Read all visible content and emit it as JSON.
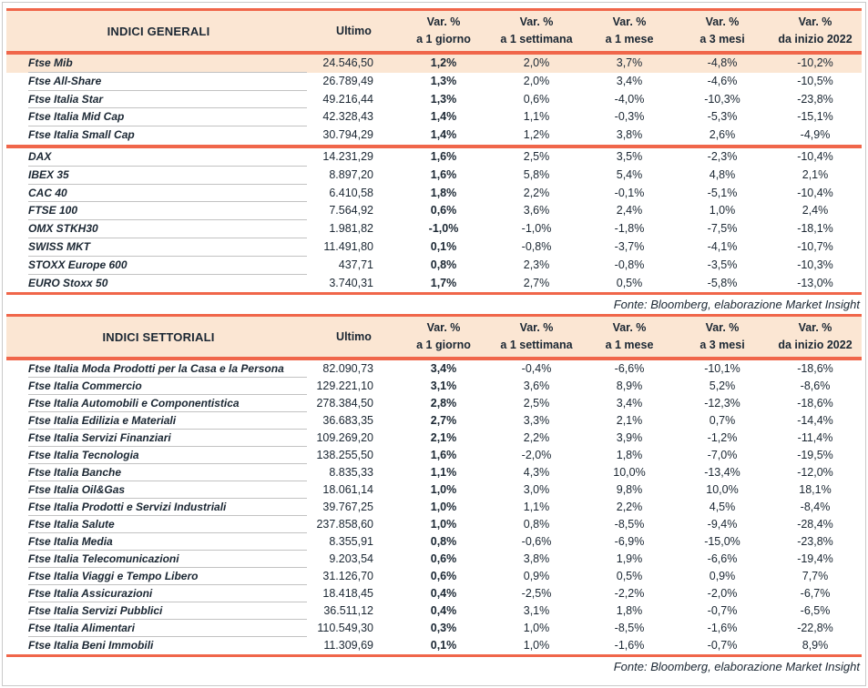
{
  "colors": {
    "accent_red": "#f0664a",
    "header_peach": "#fbe6d3",
    "text_ink": "#1b2733",
    "row_separator_gray": "#c2c2c2",
    "outer_frame_gray": "#cacaca"
  },
  "tables": [
    {
      "title": "INDICI GENERALI",
      "ultimo_label": "Ultimo",
      "var_headers": [
        {
          "line1": "Var. %",
          "line2": "a 1 giorno"
        },
        {
          "line1": "Var. %",
          "line2": "a 1 settimana"
        },
        {
          "line1": "Var. %",
          "line2": "a 1 mese"
        },
        {
          "line1": "Var. %",
          "line2": "a 3 mesi"
        },
        {
          "line1": "Var. %",
          "line2": "da inizio 2022"
        }
      ],
      "row_groups": [
        {
          "rows": [
            {
              "name": "Ftse Mib",
              "ultimo": "24.546,50",
              "d1": "1,2%",
              "w1": "2,0%",
              "m1": "3,7%",
              "m3": "-4,8%",
              "ytd": "-10,2%",
              "highlight": true
            },
            {
              "name": "Ftse All-Share",
              "ultimo": "26.789,49",
              "d1": "1,3%",
              "w1": "2,0%",
              "m1": "3,4%",
              "m3": "-4,6%",
              "ytd": "-10,5%"
            },
            {
              "name": "Ftse Italia Star",
              "ultimo": "49.216,44",
              "d1": "1,3%",
              "w1": "0,6%",
              "m1": "-4,0%",
              "m3": "-10,3%",
              "ytd": "-23,8%"
            },
            {
              "name": "Ftse Italia Mid Cap",
              "ultimo": "42.328,43",
              "d1": "1,4%",
              "w1": "1,1%",
              "m1": "-0,3%",
              "m3": "-5,3%",
              "ytd": "-15,1%"
            },
            {
              "name": "Ftse Italia Small Cap",
              "ultimo": "30.794,29",
              "d1": "1,4%",
              "w1": "1,2%",
              "m1": "3,8%",
              "m3": "2,6%",
              "ytd": "-4,9%"
            }
          ]
        },
        {
          "rows": [
            {
              "name": "DAX",
              "ultimo": "14.231,29",
              "d1": "1,6%",
              "w1": "2,5%",
              "m1": "3,5%",
              "m3": "-2,3%",
              "ytd": "-10,4%"
            },
            {
              "name": "IBEX 35",
              "ultimo": "8.897,20",
              "d1": "1,6%",
              "w1": "5,8%",
              "m1": "5,4%",
              "m3": "4,8%",
              "ytd": "2,1%"
            },
            {
              "name": "CAC 40",
              "ultimo": "6.410,58",
              "d1": "1,8%",
              "w1": "2,2%",
              "m1": "-0,1%",
              "m3": "-5,1%",
              "ytd": "-10,4%"
            },
            {
              "name": "FTSE 100",
              "ultimo": "7.564,92",
              "d1": "0,6%",
              "w1": "3,6%",
              "m1": "2,4%",
              "m3": "1,0%",
              "ytd": "2,4%"
            },
            {
              "name": "OMX STKH30",
              "ultimo": "1.981,82",
              "d1": "-1,0%",
              "w1": "-1,0%",
              "m1": "-1,8%",
              "m3": "-7,5%",
              "ytd": "-18,1%"
            },
            {
              "name": "SWISS MKT",
              "ultimo": "11.491,80",
              "d1": "0,1%",
              "w1": "-0,8%",
              "m1": "-3,7%",
              "m3": "-4,1%",
              "ytd": "-10,7%"
            },
            {
              "name": "STOXX Europe 600",
              "ultimo": "437,71",
              "d1": "0,8%",
              "w1": "2,3%",
              "m1": "-0,8%",
              "m3": "-3,5%",
              "ytd": "-10,3%"
            },
            {
              "name": "EURO Stoxx 50",
              "ultimo": "3.740,31",
              "d1": "1,7%",
              "w1": "2,7%",
              "m1": "0,5%",
              "m3": "-5,8%",
              "ytd": "-13,0%"
            }
          ]
        }
      ],
      "source_note": "Fonte: Bloomberg, elaborazione Market Insight"
    },
    {
      "title": "INDICI SETTORIALI",
      "ultimo_label": "Ultimo",
      "var_headers": [
        {
          "line1": "Var. %",
          "line2": "a 1 giorno"
        },
        {
          "line1": "Var. %",
          "line2": "a 1 settimana"
        },
        {
          "line1": "Var. %",
          "line2": "a 1 mese"
        },
        {
          "line1": "Var. %",
          "line2": "a 3 mesi"
        },
        {
          "line1": "Var. %",
          "line2": "da inizio 2022"
        }
      ],
      "row_groups": [
        {
          "rows": [
            {
              "name": "Ftse Italia Moda Prodotti per la Casa e la Persona",
              "ultimo": "82.090,73",
              "d1": "3,4%",
              "w1": "-0,4%",
              "m1": "-6,6%",
              "m3": "-10,1%",
              "ytd": "-18,6%"
            },
            {
              "name": "Ftse Italia Commercio",
              "ultimo": "129.221,10",
              "d1": "3,1%",
              "w1": "3,6%",
              "m1": "8,9%",
              "m3": "5,2%",
              "ytd": "-8,6%"
            },
            {
              "name": "Ftse Italia Automobili e Componentistica",
              "ultimo": "278.384,50",
              "d1": "2,8%",
              "w1": "2,5%",
              "m1": "3,4%",
              "m3": "-12,3%",
              "ytd": "-18,6%"
            },
            {
              "name": "Ftse Italia Edilizia e Materiali",
              "ultimo": "36.683,35",
              "d1": "2,7%",
              "w1": "3,3%",
              "m1": "2,1%",
              "m3": "0,7%",
              "ytd": "-14,4%"
            },
            {
              "name": "Ftse Italia Servizi Finanziari",
              "ultimo": "109.269,20",
              "d1": "2,1%",
              "w1": "2,2%",
              "m1": "3,9%",
              "m3": "-1,2%",
              "ytd": "-11,4%"
            },
            {
              "name": "Ftse Italia Tecnologia",
              "ultimo": "138.255,50",
              "d1": "1,6%",
              "w1": "-2,0%",
              "m1": "1,8%",
              "m3": "-7,0%",
              "ytd": "-19,5%"
            },
            {
              "name": "Ftse Italia Banche",
              "ultimo": "8.835,33",
              "d1": "1,1%",
              "w1": "4,3%",
              "m1": "10,0%",
              "m3": "-13,4%",
              "ytd": "-12,0%"
            },
            {
              "name": "Ftse Italia Oil&Gas",
              "ultimo": "18.061,14",
              "d1": "1,0%",
              "w1": "3,0%",
              "m1": "9,8%",
              "m3": "10,0%",
              "ytd": "18,1%"
            },
            {
              "name": "Ftse Italia Prodotti e Servizi Industriali",
              "ultimo": "39.767,25",
              "d1": "1,0%",
              "w1": "1,1%",
              "m1": "2,2%",
              "m3": "4,5%",
              "ytd": "-8,4%"
            },
            {
              "name": "Ftse Italia Salute",
              "ultimo": "237.858,60",
              "d1": "1,0%",
              "w1": "0,8%",
              "m1": "-8,5%",
              "m3": "-9,4%",
              "ytd": "-28,4%"
            },
            {
              "name": "Ftse Italia Media",
              "ultimo": "8.355,91",
              "d1": "0,8%",
              "w1": "-0,6%",
              "m1": "-6,9%",
              "m3": "-15,0%",
              "ytd": "-23,8%"
            },
            {
              "name": "Ftse Italia Telecomunicazioni",
              "ultimo": "9.203,54",
              "d1": "0,6%",
              "w1": "3,8%",
              "m1": "1,9%",
              "m3": "-6,6%",
              "ytd": "-19,4%"
            },
            {
              "name": "Ftse Italia Viaggi e Tempo Libero",
              "ultimo": "31.126,70",
              "d1": "0,6%",
              "w1": "0,9%",
              "m1": "0,5%",
              "m3": "0,9%",
              "ytd": "7,7%"
            },
            {
              "name": "Ftse Italia Assicurazioni",
              "ultimo": "18.418,45",
              "d1": "0,4%",
              "w1": "-2,5%",
              "m1": "-2,2%",
              "m3": "-2,0%",
              "ytd": "-6,7%"
            },
            {
              "name": "Ftse Italia Servizi Pubblici",
              "ultimo": "36.511,12",
              "d1": "0,4%",
              "w1": "3,1%",
              "m1": "1,8%",
              "m3": "-0,7%",
              "ytd": "-6,5%"
            },
            {
              "name": "Ftse Italia Alimentari",
              "ultimo": "110.549,30",
              "d1": "0,3%",
              "w1": "1,0%",
              "m1": "-8,5%",
              "m3": "-1,6%",
              "ytd": "-22,8%"
            },
            {
              "name": "Ftse Italia Beni Immobili",
              "ultimo": "11.309,69",
              "d1": "0,1%",
              "w1": "1,0%",
              "m1": "-1,6%",
              "m3": "-0,7%",
              "ytd": "8,9%"
            }
          ]
        }
      ],
      "source_note": "Fonte: Bloomberg, elaborazione Market Insight"
    }
  ]
}
